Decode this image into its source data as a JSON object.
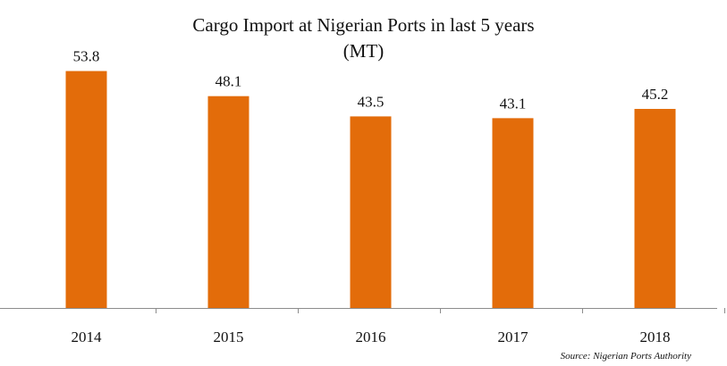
{
  "chart_data": {
    "type": "bar",
    "title_line1": "Cargo Import at Nigerian Ports in last 5 years",
    "title_line2": "(MT)",
    "categories": [
      "2014",
      "2015",
      "2016",
      "2017",
      "2018"
    ],
    "values": [
      53.8,
      48.1,
      43.5,
      43.1,
      45.2
    ],
    "value_labels": [
      "53.8",
      "48.1",
      "43.5",
      "43.1",
      "45.2"
    ],
    "xlabel": "",
    "ylabel": "",
    "ylim": [
      0,
      60
    ],
    "grid": false,
    "bar_color": "#E36C0A",
    "source": "Source: Nigerian  Ports Authority"
  }
}
